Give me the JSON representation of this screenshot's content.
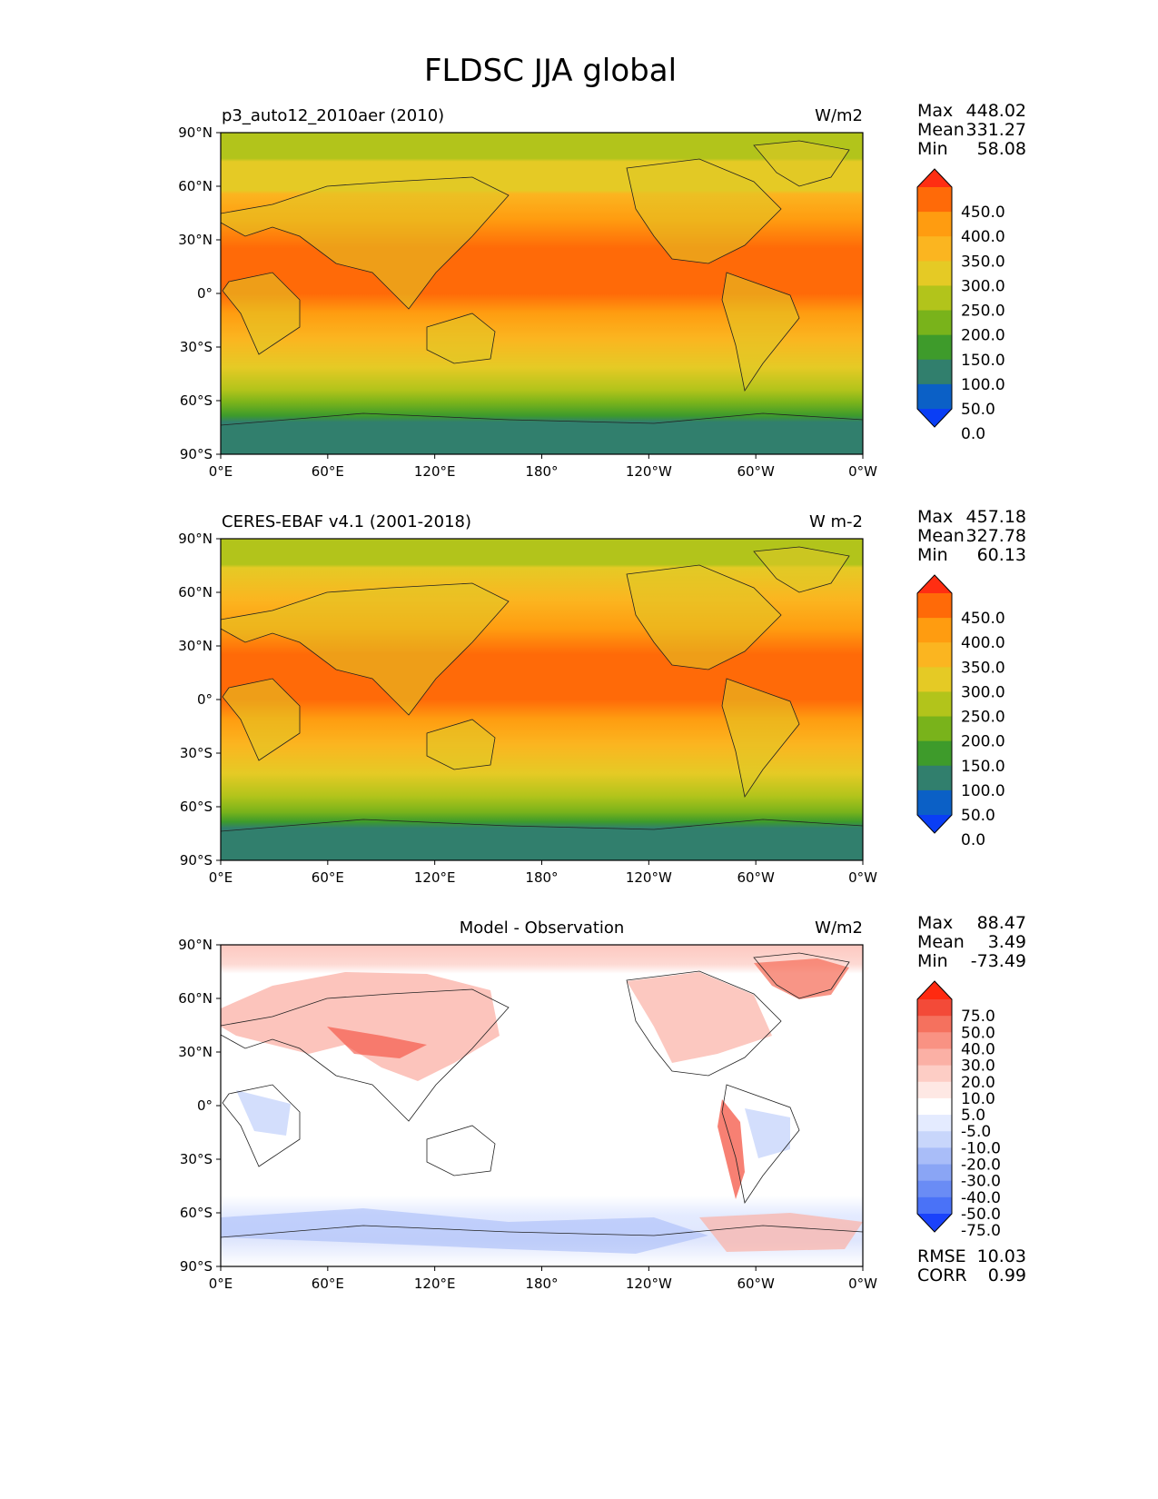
{
  "chart_data": {
    "type": "heatmap",
    "title": "FLDSC JJA global",
    "x_ticks": [
      "0°E",
      "60°E",
      "120°E",
      "180°",
      "120°W",
      "60°W",
      "0°W"
    ],
    "y_ticks": [
      "90°N",
      "60°N",
      "30°N",
      "0°",
      "30°S",
      "60°S",
      "90°S"
    ],
    "xlim": [
      0,
      360
    ],
    "ylim": [
      -90,
      90
    ],
    "panels": [
      {
        "id": "model",
        "left_title": "p3_auto12_2010aer (2010)",
        "center_title": "",
        "units": "W/m2",
        "stats": [
          {
            "label": "Max",
            "value": "448.02"
          },
          {
            "label": "Mean",
            "value": "331.27"
          },
          {
            "label": "Min",
            "value": "58.08"
          }
        ],
        "colorbar_levels": [
          "450.0",
          "400.0",
          "350.0",
          "300.0",
          "250.0",
          "200.0",
          "150.0",
          "100.0",
          "50.0",
          "0.0"
        ],
        "colorbar_colors": [
          "#ff2e12",
          "#ff6a08",
          "#ff9c10",
          "#fbb520",
          "#e5ca25",
          "#b2c41b",
          "#79b31b",
          "#3e9b2b",
          "#317f6d",
          "#0b60c6",
          "#0a3ef5"
        ]
      },
      {
        "id": "obs",
        "left_title": "CERES-EBAF v4.1 (2001-2018)",
        "center_title": "",
        "units": "W m-2",
        "stats": [
          {
            "label": "Max",
            "value": "457.18"
          },
          {
            "label": "Mean",
            "value": "327.78"
          },
          {
            "label": "Min",
            "value": "60.13"
          }
        ],
        "colorbar_levels": [
          "450.0",
          "400.0",
          "350.0",
          "300.0",
          "250.0",
          "200.0",
          "150.0",
          "100.0",
          "50.0",
          "0.0"
        ],
        "colorbar_colors": [
          "#ff2e12",
          "#ff6a08",
          "#ff9c10",
          "#fbb520",
          "#e5ca25",
          "#b2c41b",
          "#79b31b",
          "#3e9b2b",
          "#317f6d",
          "#0b60c6",
          "#0a3ef5"
        ]
      },
      {
        "id": "diff",
        "left_title": "",
        "center_title": "Model - Observation",
        "units": "W/m2",
        "stats": [
          {
            "label": "Max",
            "value": "88.47"
          },
          {
            "label": "Mean",
            "value": "3.49"
          },
          {
            "label": "Min",
            "value": "-73.49"
          }
        ],
        "colorbar_levels": [
          "75.0",
          "50.0",
          "40.0",
          "30.0",
          "20.0",
          "10.0",
          "5.0",
          "-5.0",
          "-10.0",
          "-20.0",
          "-30.0",
          "-40.0",
          "-50.0",
          "-75.0"
        ],
        "colorbar_colors": [
          "#ff2a10",
          "#f34a38",
          "#f5715e",
          "#f99283",
          "#fbb0a5",
          "#fdcdc5",
          "#fee8e4",
          "#ffffff",
          "#e4ebff",
          "#c8d6fb",
          "#a9bdf8",
          "#8aa5f5",
          "#6a8cf5",
          "#4a72f7",
          "#1a42fb"
        ],
        "bottom_stats": [
          {
            "label": "RMSE",
            "value": "10.03"
          },
          {
            "label": "CORR",
            "value": "0.99"
          }
        ]
      }
    ]
  }
}
